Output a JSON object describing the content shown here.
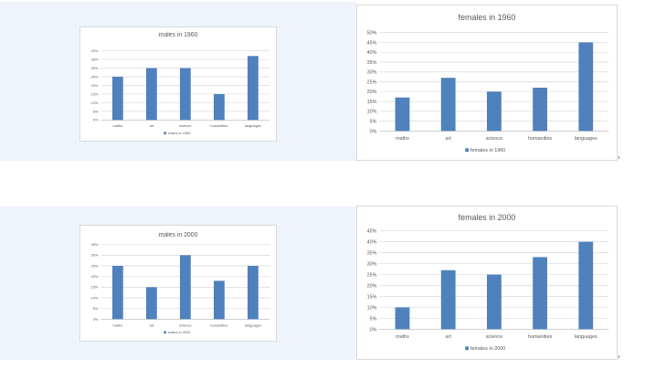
{
  "colors": {
    "bar": "#4f81bd",
    "background_band": "#eff4fb"
  },
  "chart_data": [
    {
      "type": "bar",
      "title": "males in 1960",
      "categories": [
        "maths",
        "art",
        "science",
        "humanities",
        "languages"
      ],
      "series": [
        {
          "name": "males in 1960",
          "values": [
            25,
            30,
            30,
            15,
            37
          ]
        }
      ],
      "yticks": [
        "0%",
        "5%",
        "10%",
        "15%",
        "20%",
        "25%",
        "30%",
        "35%",
        "40%"
      ],
      "ylim": [
        0,
        40
      ],
      "grid": true,
      "legend": "bottom"
    },
    {
      "type": "bar",
      "title": "females in 1960",
      "categories": [
        "maths",
        "art",
        "science",
        "humanities",
        "languages"
      ],
      "series": [
        {
          "name": "females in 1960",
          "values": [
            17,
            27,
            20,
            22,
            45
          ]
        }
      ],
      "yticks": [
        "0%",
        "5%",
        "10%",
        "15%",
        "20%",
        "25%",
        "30%",
        "35%",
        "40%",
        "45%",
        "50%"
      ],
      "ylim": [
        0,
        50
      ],
      "grid": true,
      "legend": "bottom"
    },
    {
      "type": "bar",
      "title": "males in 2000",
      "categories": [
        "maths",
        "art",
        "science",
        "humanities",
        "languages"
      ],
      "series": [
        {
          "name": "males in 2000",
          "values": [
            25,
            15,
            30,
            18,
            25
          ]
        }
      ],
      "yticks": [
        "0%",
        "5%",
        "10%",
        "15%",
        "20%",
        "25%",
        "30%",
        "35%"
      ],
      "ylim": [
        0,
        35
      ],
      "grid": true,
      "legend": "bottom"
    },
    {
      "type": "bar",
      "title": "females in 2000",
      "categories": [
        "maths",
        "art",
        "science",
        "humanities",
        "languages"
      ],
      "series": [
        {
          "name": "females in 2000",
          "values": [
            10,
            27,
            25,
            33,
            40
          ]
        }
      ],
      "yticks": [
        "0%",
        "5%",
        "10%",
        "15%",
        "20%",
        "25%",
        "30%",
        "35%",
        "40%",
        "45%"
      ],
      "ylim": [
        0,
        45
      ],
      "grid": true,
      "legend": "bottom"
    }
  ]
}
